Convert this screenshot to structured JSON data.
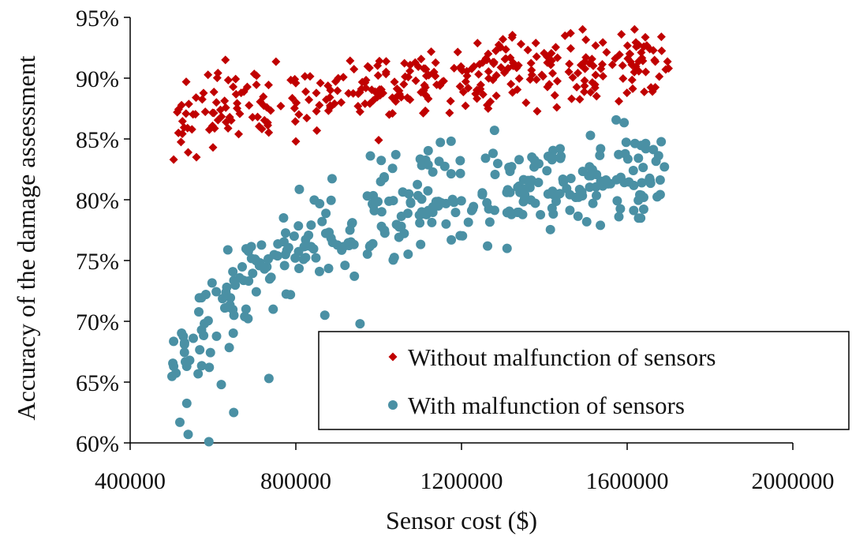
{
  "chart_data": {
    "type": "scatter",
    "title": "",
    "xlabel": "Sensor cost ($)",
    "ylabel": "Accuracy of the damage assessment",
    "xlim": [
      400000,
      2000000
    ],
    "ylim": [
      60,
      95
    ],
    "x_ticks": [
      400000,
      800000,
      1200000,
      1600000,
      2000000
    ],
    "x_tick_labels": [
      "400000",
      "800000",
      "1200000",
      "1600000",
      "2000000"
    ],
    "y_ticks": [
      60,
      65,
      70,
      75,
      80,
      85,
      90,
      95
    ],
    "y_tick_labels": [
      "60%",
      "65%",
      "70%",
      "75%",
      "80%",
      "85%",
      "90%",
      "95%"
    ],
    "grid": false,
    "legend_position": "bottom-right",
    "series": [
      {
        "name": "Without malfunction of sensors",
        "marker": "diamond",
        "color": "#c00000",
        "x_range": [
          500000,
          1700000
        ],
        "y_mean": [
          86.5,
          88.3,
          89.0,
          89.8,
          90.5,
          91.0,
          91.5
        ],
        "y_spread": 3.2,
        "count": 340
      },
      {
        "name": "With malfunction of sensors",
        "marker": "circle",
        "color": "#4a90a4",
        "x_range": [
          500000,
          1700000
        ],
        "y_mean": [
          66.0,
          74.0,
          77.5,
          80.0,
          81.0,
          81.8,
          82.3
        ],
        "y_spread": 4.5,
        "count": 340
      }
    ],
    "sample_points": {
      "Without malfunction of sensors": [
        [
          505000,
          83.3
        ],
        [
          540000,
          83.9
        ],
        [
          560000,
          83.5
        ],
        [
          600000,
          84.3
        ],
        [
          630000,
          91.5
        ],
        [
          800000,
          84.8
        ],
        [
          1000000,
          84.9
        ],
        [
          1300000,
          93.2
        ],
        [
          1430000,
          87.6
        ],
        [
          1580000,
          88.1
        ],
        [
          1700000,
          90.8
        ]
      ],
      "With malfunction of sensors": [
        [
          505000,
          66.3
        ],
        [
          520000,
          61.7
        ],
        [
          540000,
          60.7
        ],
        [
          590000,
          60.1
        ],
        [
          620000,
          64.8
        ],
        [
          650000,
          62.5
        ],
        [
          735000,
          65.3
        ],
        [
          870000,
          70.5
        ],
        [
          955000,
          69.8
        ],
        [
          980000,
          83.6
        ],
        [
          1310000,
          76.0
        ],
        [
          1580000,
          78.6
        ],
        [
          1645000,
          84.2
        ],
        [
          1690000,
          82.7
        ]
      ]
    }
  }
}
